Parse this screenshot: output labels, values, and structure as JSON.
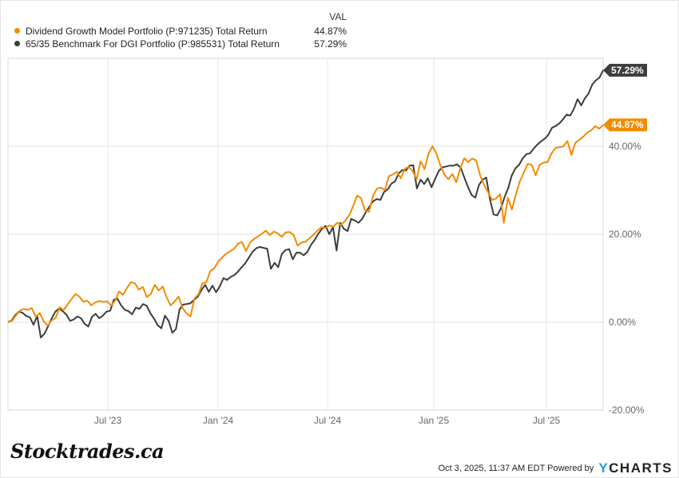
{
  "legend": {
    "header": "VAL",
    "items": [
      {
        "name": "Dividend Growth Model Portfolio (P:971235) Total Return",
        "value": "44.87%",
        "color": "#f38b00"
      },
      {
        "name": "65/35 Benchmark For DGI Portfolio (P:985531) Total Return",
        "value": "57.29%",
        "color": "#3d3d3d"
      }
    ]
  },
  "branding": {
    "logo": "Stocktrades.ca",
    "timestamp": "Oct 3, 2025, 11:37 AM EDT",
    "powered_by": "Powered by",
    "provider_y": "Y",
    "provider_rest": "CHARTS"
  },
  "chart_data": {
    "type": "line",
    "title": "",
    "xlabel": "",
    "ylabel": "",
    "x_tick_labels": [
      "Jul '23",
      "Jan '24",
      "Jul '24",
      "Jan '25",
      "Jul '25"
    ],
    "y_tick_labels": [
      "-20.00%",
      "0.00%",
      "20.00%",
      "40.00%"
    ],
    "y_ticks": [
      -20,
      0,
      20,
      40
    ],
    "ylim": [
      -20,
      60
    ],
    "x_range": [
      "2023-02",
      "2025-10"
    ],
    "grid": true,
    "legend_position": "top-left",
    "end_labels": [
      "44.87%",
      "57.29%"
    ],
    "series": [
      {
        "name": "Dividend Growth Model Portfolio (P:971235) Total Return",
        "color": "#f38b00",
        "values": [
          0,
          0.3,
          1.5,
          2.6,
          3.0,
          2.8,
          3.2,
          1.2,
          2.1,
          0.2,
          -0.8,
          0.4,
          0.9,
          3.4,
          2.7,
          4.0,
          5.2,
          6.4,
          5.8,
          4.6,
          4.9,
          3.8,
          4.5,
          4.8,
          4.6,
          4.7,
          3.8,
          4.9,
          7.0,
          6.2,
          7.8,
          9.1,
          8.8,
          7.4,
          8.0,
          5.7,
          6.4,
          8.5,
          7.2,
          8.1,
          5.6,
          3.8,
          4.7,
          5.8,
          3.2,
          2.0,
          1.3,
          5.4,
          6.3,
          8.8,
          9.1,
          11.6,
          12.3,
          13.8,
          14.7,
          15.6,
          16.1,
          16.7,
          17.9,
          18.2,
          16.2,
          18.1,
          18.9,
          19.5,
          20.1,
          20.8,
          19.8,
          20.6,
          20.2,
          19.4,
          20.4,
          20.5,
          19.8,
          17.4,
          18.1,
          18.3,
          19.1,
          19.9,
          20.8,
          21.6,
          21.4,
          22.0,
          21.7,
          22.6,
          22.1,
          23.1,
          24.3,
          26.4,
          28.8,
          28.2,
          25.4,
          25.1,
          28.7,
          30.4,
          30.6,
          30.0,
          33.2,
          33.6,
          34.2,
          32.7,
          34.9,
          35.3,
          34.4,
          32.5,
          36.6,
          34.8,
          38.4,
          40.0,
          38.3,
          35.6,
          33.6,
          32.5,
          33.7,
          31.8,
          35.0,
          37.3,
          36.4,
          37.2,
          36.8,
          33.4,
          31.2,
          29.6,
          27.8,
          28.1,
          29.1,
          22.6,
          28.3,
          25.6,
          29.0,
          32.0,
          34.0,
          36.0,
          35.8,
          33.4,
          35.8,
          36.3,
          36.4,
          38.4,
          39.6,
          39.8,
          40.0,
          41.2,
          38.0,
          40.8,
          41.5,
          42.2,
          43.1,
          43.6,
          44.6,
          44.0,
          44.87
        ]
      },
      {
        "name": "65/35 Benchmark For DGI Portfolio (P:985531) Total Return",
        "color": "#3d3d3d",
        "values": [
          0,
          0.4,
          1.6,
          2.4,
          2.1,
          1.4,
          1.1,
          -0.6,
          1.4,
          -3.5,
          -2.6,
          -0.9,
          0.9,
          2.4,
          3.1,
          2.5,
          1.7,
          0.3,
          0.6,
          1.3,
          0.9,
          -0.4,
          -1.0,
          1.2,
          1.9,
          0.9,
          1.5,
          2.4,
          2.6,
          5.1,
          5.3,
          3.8,
          2.8,
          2.5,
          1.8,
          3.3,
          3.0,
          4.1,
          3.7,
          2.0,
          0.8,
          -0.7,
          -1.4,
          1.5,
          0.3,
          -2.4,
          -1.6,
          2.9,
          4.0,
          4.1,
          4.3,
          5.1,
          5.8,
          7.3,
          8.5,
          6.9,
          8.3,
          6.8,
          8.1,
          10.0,
          9.6,
          10.3,
          10.7,
          11.5,
          12.5,
          13.4,
          14.7,
          16.0,
          16.8,
          17.1,
          16.9,
          16.7,
          12.1,
          13.5,
          12.5,
          15.5,
          16.4,
          16.6,
          14.3,
          15.8,
          15.8,
          15.2,
          16.0,
          17.6,
          18.7,
          20.1,
          21.2,
          21.9,
          20.0,
          21.6,
          16.3,
          22.6,
          21.2,
          20.7,
          23.5,
          23.1,
          22.6,
          23.5,
          25.0,
          26.3,
          27.5,
          28.0,
          27.8,
          29.6,
          30.2,
          31.5,
          32.0,
          33.8,
          34.6,
          34.5,
          35.6,
          35.7,
          30.4,
          32.4,
          31.4,
          32.7,
          30.7,
          32.6,
          34.4,
          35.2,
          35.4,
          35.6,
          35.6,
          35.9,
          35.1,
          32.9,
          30.7,
          28.9,
          28.3,
          31.2,
          32.4,
          32.9,
          28.0,
          24.5,
          24.3,
          25.9,
          28.4,
          30.5,
          33.4,
          35.0,
          35.8,
          37.3,
          38.2,
          38.4,
          39.5,
          40.4,
          41.1,
          41.7,
          42.6,
          44.2,
          44.6,
          45.2,
          46.1,
          47.2,
          47.0,
          48.5,
          50.7,
          49.3,
          50.9,
          52.0,
          54.0,
          55.0,
          55.6,
          57.29
        ]
      }
    ]
  }
}
